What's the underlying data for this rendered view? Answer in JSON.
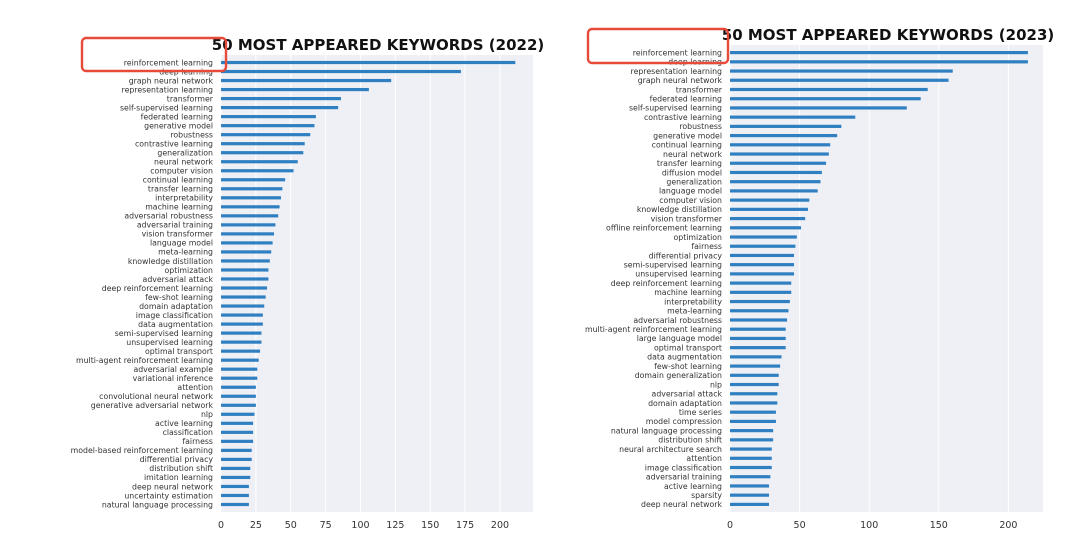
{
  "charts": [
    {
      "id": "chart2022",
      "chart_data": {
        "type": "bar",
        "orientation": "horizontal",
        "title": "50 MOST APPEARED KEYWORDS (2022)",
        "xlim": [
          0,
          220
        ],
        "xticks": [
          0,
          25,
          50,
          75,
          100,
          125,
          150,
          175,
          200
        ],
        "grid": true,
        "highlighted_category": "reinforcement learning",
        "highlight_color": "#e84a3a",
        "bar_color": "#2f7fc1",
        "categories": [
          "reinforcement learning",
          "deep learning",
          "graph neural network",
          "representation learning",
          "transformer",
          "self-supervised learning",
          "federated learning",
          "generative model",
          "robustness",
          "contrastive learning",
          "generalization",
          "neural network",
          "computer vision",
          "continual learning",
          "transfer learning",
          "interpretability",
          "machine learning",
          "adversarial robustness",
          "adversarial training",
          "vision transformer",
          "language model",
          "meta-learning",
          "knowledge distillation",
          "optimization",
          "adversarial attack",
          "deep reinforcement learning",
          "few-shot learning",
          "domain adaptation",
          "image classification",
          "data augmentation",
          "semi-supervised learning",
          "unsupervised learning",
          "optimal transport",
          "multi-agent reinforcement learning",
          "adversarial example",
          "variational inference",
          "attention",
          "convolutional neural network",
          "generative adversarial network",
          "nlp",
          "active learning",
          "classification",
          "fairness",
          "model-based reinforcement learning",
          "differential privacy",
          "distribution shift",
          "imitation learning",
          "deep neural network",
          "uncertainty estimation",
          "natural language processing"
        ],
        "values": [
          211,
          172,
          122,
          106,
          86,
          84,
          68,
          67,
          64,
          60,
          59,
          55,
          52,
          46,
          44,
          43,
          42,
          41,
          39,
          38,
          37,
          36,
          35,
          34,
          34,
          33,
          32,
          31,
          30,
          30,
          29,
          29,
          28,
          27,
          26,
          26,
          25,
          25,
          25,
          24,
          23,
          23,
          23,
          22,
          22,
          21,
          21,
          20,
          20,
          20
        ]
      }
    },
    {
      "id": "chart2023",
      "chart_data": {
        "type": "bar",
        "orientation": "horizontal",
        "title": "50 MOST APPEARED KEYWORDS (2023)",
        "xlim": [
          0,
          225
        ],
        "xticks": [
          0,
          50,
          100,
          150,
          200
        ],
        "grid": true,
        "highlighted_category": "reinforcement learning",
        "highlight_color": "#e84a3a",
        "bar_color": "#2f7fc1",
        "categories": [
          "reinforcement learning",
          "deep learning",
          "representation learning",
          "graph neural network",
          "transformer",
          "federated learning",
          "self-supervised learning",
          "contrastive learning",
          "robustness",
          "generative model",
          "continual learning",
          "neural network",
          "transfer learning",
          "diffusion model",
          "generalization",
          "language model",
          "computer vision",
          "knowledge distillation",
          "vision transformer",
          "offline reinforcement learning",
          "optimization",
          "fairness",
          "differential privacy",
          "semi-supervised learning",
          "unsupervised learning",
          "deep reinforcement learning",
          "machine learning",
          "interpretability",
          "meta-learning",
          "adversarial robustness",
          "multi-agent reinforcement learning",
          "large language model",
          "optimal transport",
          "data augmentation",
          "few-shot learning",
          "domain generalization",
          "nlp",
          "adversarial attack",
          "domain adaptation",
          "time series",
          "model compression",
          "natural language processing",
          "distribution shift",
          "neural architecture search",
          "attention",
          "image classification",
          "adversarial training",
          "active learning",
          "sparsity",
          "deep neural network"
        ],
        "values": [
          214,
          214,
          160,
          157,
          142,
          137,
          127,
          90,
          80,
          77,
          72,
          71,
          69,
          66,
          65,
          63,
          57,
          56,
          54,
          51,
          48,
          47,
          46,
          46,
          46,
          44,
          44,
          43,
          42,
          41,
          40,
          40,
          40,
          37,
          36,
          35,
          35,
          34,
          34,
          33,
          33,
          31,
          31,
          30,
          30,
          30,
          29,
          28,
          28,
          28
        ]
      }
    }
  ]
}
